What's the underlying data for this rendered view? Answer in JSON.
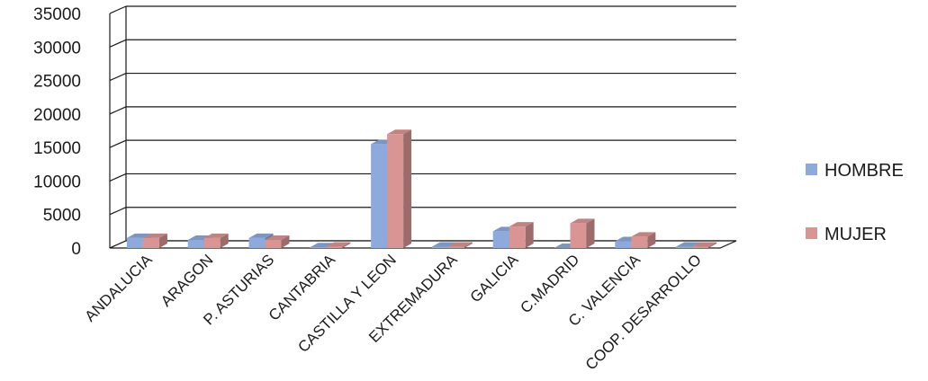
{
  "chart_data": {
    "type": "bar",
    "categories": [
      "ANDALUCIA",
      "ARAGON",
      "P. ASTURIAS",
      "CANTABRIA",
      "CASTILLA Y LEON",
      "EXTREMADURA",
      "GALICIA",
      "C.MADRID",
      "C. VALENCIA",
      "COOP. DESARROLLO"
    ],
    "series": [
      {
        "name": "HOMBRE",
        "values": [
          1500,
          1200,
          1500,
          100,
          15500,
          200,
          2500,
          0,
          1000,
          200
        ],
        "color": "#8ea9db"
      },
      {
        "name": "MUJER",
        "values": [
          1500,
          1500,
          1200,
          200,
          17000,
          200,
          3200,
          3700,
          1700,
          200
        ],
        "color": "#d99594"
      }
    ],
    "yticks": [
      "0",
      "5000",
      "10000",
      "15000",
      "20000",
      "25000",
      "30000",
      "35000"
    ],
    "ylim": [
      0,
      35000
    ],
    "title": "",
    "xlabel": "",
    "ylabel": "",
    "grid": true,
    "legend_position": "right",
    "style": "3d-clustered-column"
  }
}
